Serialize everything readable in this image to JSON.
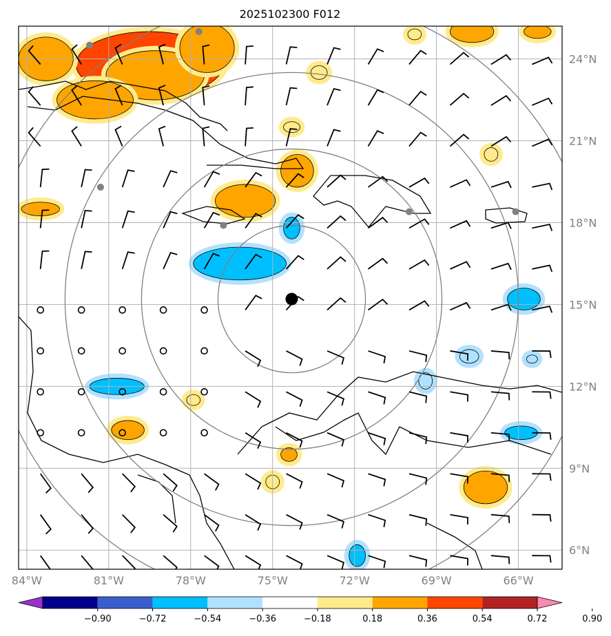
{
  "title": "2025102300 F012",
  "map": {
    "lon_range": [
      -84.3,
      -64.4
    ],
    "lat_range": [
      5.3,
      25.2
    ],
    "lon_ticks": [
      {
        "value": -84,
        "label": "84°W"
      },
      {
        "value": -81,
        "label": "81°W"
      },
      {
        "value": -78,
        "label": "78°W"
      },
      {
        "value": -75,
        "label": "75°W"
      },
      {
        "value": -72,
        "label": "72°W"
      },
      {
        "value": -69,
        "label": "69°W"
      },
      {
        "value": -66,
        "label": "66°W"
      }
    ],
    "lat_ticks": [
      {
        "value": 24,
        "label": "24°N"
      },
      {
        "value": 21,
        "label": "21°N"
      },
      {
        "value": 18,
        "label": "18°N"
      },
      {
        "value": 15,
        "label": "15°N"
      },
      {
        "value": 12,
        "label": "12°N"
      },
      {
        "value": 9,
        "label": "9°N"
      },
      {
        "value": 6,
        "label": "6°N"
      }
    ],
    "center": {
      "lon": -74.3,
      "lat": 15.2
    },
    "range_rings_deg": [
      2.7,
      5.5,
      8.3,
      11.1
    ],
    "stations": [
      {
        "lon": -81.7,
        "lat": 24.5
      },
      {
        "lon": -77.7,
        "lat": 25.0
      },
      {
        "lon": -81.3,
        "lat": 19.3
      },
      {
        "lon": -76.8,
        "lat": 17.9
      },
      {
        "lon": -70.0,
        "lat": 18.4
      },
      {
        "lon": -66.1,
        "lat": 18.4
      }
    ],
    "colors": {
      "grid": "#b0b0b0",
      "ring": "#808080",
      "coast": "#000000",
      "station": "#808080",
      "barb": "#000000"
    }
  },
  "fields": {
    "positive": [
      {
        "lon": -79.5,
        "lat": 23.8,
        "rx": 2.7,
        "ry": 1.2,
        "level": 0.9
      },
      {
        "lon": -79.3,
        "lat": 23.4,
        "rx": 1.8,
        "ry": 0.9,
        "level": 0.7
      },
      {
        "lon": -81.5,
        "lat": 22.5,
        "rx": 1.4,
        "ry": 0.7,
        "level": 0.45
      },
      {
        "lon": -83.3,
        "lat": 24.0,
        "rx": 1.0,
        "ry": 0.8,
        "level": 0.45
      },
      {
        "lon": -77.4,
        "lat": 24.4,
        "rx": 1.0,
        "ry": 0.9,
        "level": 0.45
      },
      {
        "lon": -76.0,
        "lat": 18.8,
        "rx": 1.1,
        "ry": 0.6,
        "level": 0.45
      },
      {
        "lon": -74.1,
        "lat": 19.9,
        "rx": 0.6,
        "ry": 0.6,
        "level": 0.45
      },
      {
        "lon": -67.2,
        "lat": 8.3,
        "rx": 0.8,
        "ry": 0.6,
        "level": 0.45
      },
      {
        "lon": -80.3,
        "lat": 10.4,
        "rx": 0.6,
        "ry": 0.35,
        "level": 0.45
      },
      {
        "lon": -67.7,
        "lat": 25.0,
        "rx": 0.8,
        "ry": 0.4,
        "level": 0.45
      },
      {
        "lon": -65.3,
        "lat": 25.0,
        "rx": 0.5,
        "ry": 0.25,
        "level": 0.45
      },
      {
        "lon": -83.5,
        "lat": 18.5,
        "rx": 0.7,
        "ry": 0.25,
        "level": 0.45
      },
      {
        "lon": -73.3,
        "lat": 23.5,
        "rx": 0.3,
        "ry": 0.25,
        "level": 0.3
      },
      {
        "lon": -74.3,
        "lat": 21.5,
        "rx": 0.3,
        "ry": 0.2,
        "level": 0.3
      },
      {
        "lon": -67.0,
        "lat": 20.5,
        "rx": 0.25,
        "ry": 0.25,
        "level": 0.3
      },
      {
        "lon": -77.9,
        "lat": 11.5,
        "rx": 0.25,
        "ry": 0.2,
        "level": 0.3
      },
      {
        "lon": -75.0,
        "lat": 8.5,
        "rx": 0.25,
        "ry": 0.25,
        "level": 0.3
      },
      {
        "lon": -74.4,
        "lat": 9.5,
        "rx": 0.3,
        "ry": 0.25,
        "level": 0.45
      },
      {
        "lon": -69.8,
        "lat": 24.9,
        "rx": 0.25,
        "ry": 0.2,
        "level": 0.3
      }
    ],
    "negative": [
      {
        "lon": -76.2,
        "lat": 16.5,
        "rx": 1.7,
        "ry": 0.6,
        "level": -0.45
      },
      {
        "lon": -74.3,
        "lat": 17.8,
        "rx": 0.3,
        "ry": 0.4,
        "level": -0.45
      },
      {
        "lon": -80.7,
        "lat": 12.0,
        "rx": 1.0,
        "ry": 0.3,
        "level": -0.45
      },
      {
        "lon": -65.8,
        "lat": 15.2,
        "rx": 0.6,
        "ry": 0.4,
        "level": -0.45
      },
      {
        "lon": -65.9,
        "lat": 10.3,
        "rx": 0.6,
        "ry": 0.25,
        "level": -0.45
      },
      {
        "lon": -71.9,
        "lat": 5.8,
        "rx": 0.3,
        "ry": 0.4,
        "level": -0.45
      },
      {
        "lon": -69.4,
        "lat": 12.2,
        "rx": 0.25,
        "ry": 0.3,
        "level": -0.3
      },
      {
        "lon": -67.8,
        "lat": 13.1,
        "rx": 0.35,
        "ry": 0.25,
        "level": -0.3
      },
      {
        "lon": -65.5,
        "lat": 13.0,
        "rx": 0.2,
        "ry": 0.15,
        "level": -0.3
      }
    ]
  },
  "colorbar": {
    "levels": [
      "−0.90",
      "−0.72",
      "−0.54",
      "−0.36",
      "−0.18",
      "0.18",
      "0.36",
      "0.54",
      "0.72",
      "0.90"
    ],
    "colors": [
      "#9932cc",
      "#00008b",
      "#3a5fcd",
      "#00bfff",
      "#b0e2ff",
      "#ffffff",
      "#ffeb8c",
      "#ffa500",
      "#ff4500",
      "#b22222",
      "#ff88b0"
    ]
  }
}
